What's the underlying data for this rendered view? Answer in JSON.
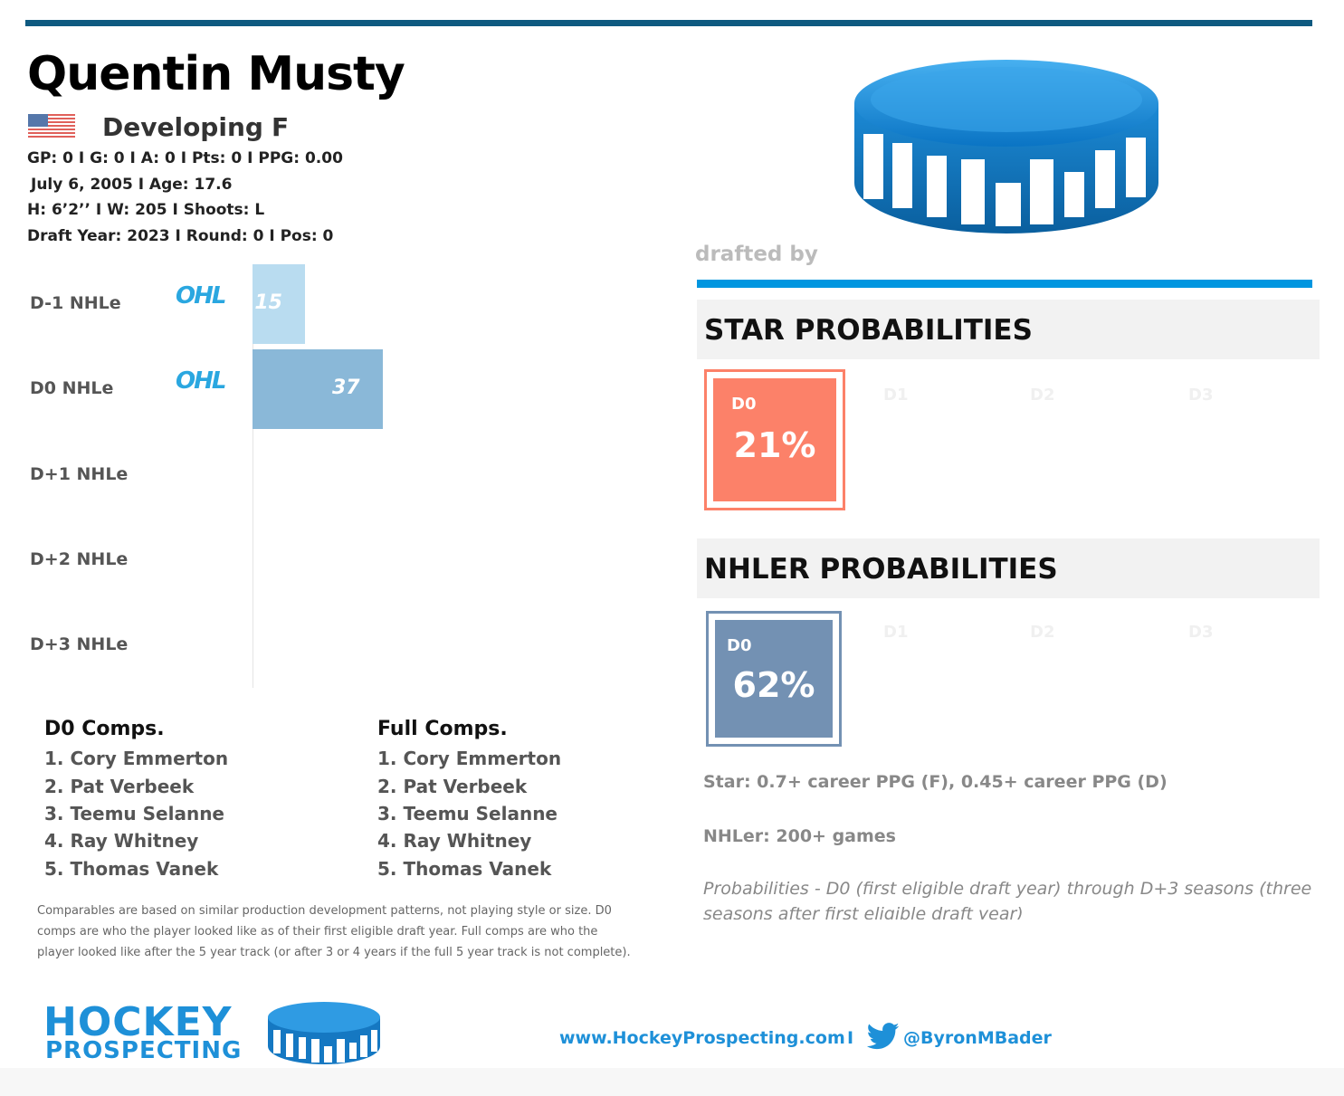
{
  "player": {
    "name": "Quentin Musty",
    "status": "Developing",
    "position": "F",
    "nationality_flag": "usa-flag-icon",
    "stats_line": "GP: 0 I G: 0 I A: 0 I Pts: 0 I PPG: 0.00",
    "birth_line": "July 6, 2005 I Age: 17.6",
    "body_line": "H: 6’2’’ I W: 205 I Shoots: L",
    "draft_line": "Draft Year: 2023 I Round: 0 I Pos: 0"
  },
  "chart_data": {
    "type": "bar",
    "orientation": "horizontal",
    "categories": [
      "D-1 NHLe",
      "D0 NHLe",
      "D+1 NHLe",
      "D+2 NHLe",
      "D+3 NHLe"
    ],
    "values": [
      15,
      37,
      null,
      null,
      null
    ],
    "value_labels": [
      "15",
      "37",
      "",
      "",
      ""
    ],
    "leagues": [
      "OHL",
      "OHL",
      "",
      "",
      ""
    ],
    "colors": [
      "#b9dcf0",
      "#8ab8d8"
    ],
    "grid": false
  },
  "comps": {
    "d0_title": "D0 Comps.",
    "d0": [
      "1. Cory Emmerton",
      "2. Pat Verbeek",
      "3. Teemu Selanne",
      "4. Ray Whitney",
      "5. Thomas Vanek"
    ],
    "full_title": "Full Comps.",
    "full": [
      "1. Cory Emmerton",
      "2. Pat Verbeek",
      "3. Teemu Selanne",
      "4. Ray Whitney",
      "5. Thomas Vanek"
    ],
    "note_lines": [
      "Comparables are based on similar production development patterns, not playing style or size. D0",
      "comps are who the player looked like as of their first eligible draft year. Full comps are who the",
      "player looked like after the 5 year track (or after 3 or 4 years if the full 5 year track is not complete)."
    ]
  },
  "drafted_by": "drafted by",
  "star": {
    "title": "STAR PROBABILITIES",
    "active_label": "D0",
    "active_value": "21%",
    "faint_labels": [
      "D1",
      "D2",
      "D3"
    ],
    "color": "#fc8169"
  },
  "nhler": {
    "title": "NHLER PROBABILITIES",
    "active_label": "D0",
    "active_value": "62%",
    "faint_labels": [
      "D1",
      "D2",
      "D3"
    ],
    "color": "#7391b3"
  },
  "definitions": {
    "star": "Star: 0.7+ career PPG (F), 0.45+ career PPG (D)",
    "nhler": "NHLer: 200+ games",
    "probabilities": "Probabilities - D0 (first eligible draft year) through D+3 seasons (three seasons after first eligible draft year)"
  },
  "footer": {
    "logo_line1": "HOCKEY",
    "logo_line2": "PROSPECTING",
    "url": "www.HockeyProspecting.com",
    "separator": "I",
    "handle": "@ByronMBader",
    "twitter_icon": "twitter-bird-icon"
  }
}
